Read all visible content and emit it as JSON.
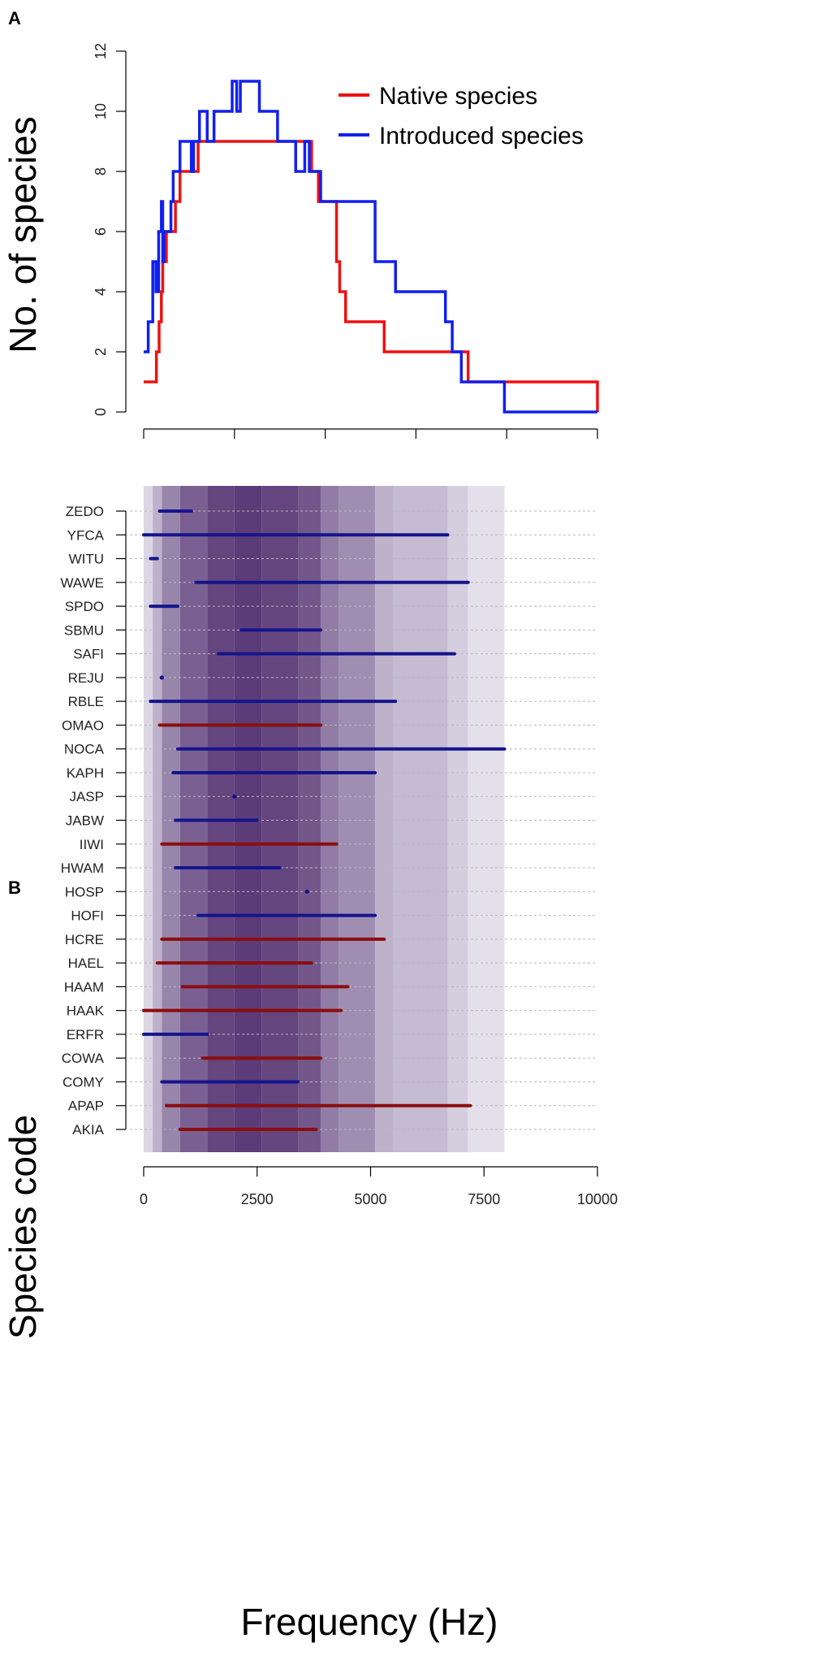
{
  "panel_a": {
    "panel_label": "A",
    "chart_data": {
      "type": "line",
      "title": "",
      "xlabel": "",
      "ylabel": "No. of species",
      "xlim": [
        0,
        10000
      ],
      "ylim": [
        0,
        12
      ],
      "x_ticks": [
        0,
        2000,
        4000,
        6000,
        8000,
        10000
      ],
      "y_ticks": [
        0,
        2,
        4,
        6,
        8,
        10,
        12
      ],
      "y_tick_labels": [
        "0",
        "2",
        "4",
        "6",
        "8",
        "10",
        "12"
      ],
      "legend_position": "top-right",
      "series": [
        {
          "name": "Native species",
          "color": "#ee1111",
          "step": true,
          "x": [
            0,
            280,
            340,
            390,
            420,
            500,
            700,
            800,
            850,
            1200,
            1300,
            1400,
            3700,
            3850,
            4250,
            4320,
            4450,
            5300,
            7150,
            10000
          ],
          "y": [
            1,
            2,
            3,
            4,
            5,
            6,
            7,
            8,
            8,
            9,
            9,
            9,
            8,
            7,
            5,
            4,
            3,
            2,
            1,
            0
          ]
        },
        {
          "name": "Introduced species",
          "color": "#1020ee",
          "step": true,
          "x": [
            0,
            100,
            200,
            270,
            330,
            390,
            420,
            450,
            500,
            600,
            650,
            700,
            800,
            1050,
            1100,
            1180,
            1230,
            1400,
            1550,
            1650,
            1950,
            2050,
            2130,
            2550,
            2950,
            3350,
            3550,
            3650,
            3900,
            5100,
            5550,
            6650,
            6800,
            7000,
            7150,
            7950,
            10000
          ],
          "y": [
            2,
            3,
            5,
            4,
            6,
            7,
            5,
            6,
            6,
            7,
            8,
            8,
            9,
            8,
            9,
            9,
            10,
            9,
            10,
            10,
            11,
            10,
            11,
            10,
            9,
            8,
            9,
            8,
            7,
            5,
            4,
            3,
            2,
            1,
            1,
            0,
            0
          ]
        }
      ]
    }
  },
  "panel_b": {
    "panel_label": "B",
    "chart_data": {
      "type": "bar",
      "orientation": "horizontal-range",
      "title": "",
      "xlabel": "Frequency (Hz)",
      "ylabel": "Species code",
      "xlim": [
        0,
        10000
      ],
      "x_ticks": [
        0,
        2500,
        5000,
        7500,
        10000
      ],
      "x_tick_labels": [
        "0",
        "2500",
        "5000",
        "7500",
        "10000"
      ],
      "background_density_note": "shaded bands indicate count of species overlapping each frequency",
      "background_bands": [
        {
          "from": 0,
          "to": 200,
          "count": 3
        },
        {
          "from": 200,
          "to": 400,
          "count": 7
        },
        {
          "from": 400,
          "to": 800,
          "count": 12
        },
        {
          "from": 800,
          "to": 1400,
          "count": 16
        },
        {
          "from": 1400,
          "to": 2000,
          "count": 19
        },
        {
          "from": 2000,
          "to": 2600,
          "count": 20
        },
        {
          "from": 2600,
          "to": 3400,
          "count": 19
        },
        {
          "from": 3400,
          "to": 3900,
          "count": 17
        },
        {
          "from": 3900,
          "to": 4300,
          "count": 13
        },
        {
          "from": 4300,
          "to": 5100,
          "count": 11
        },
        {
          "from": 5100,
          "to": 5500,
          "count": 7
        },
        {
          "from": 5500,
          "to": 6700,
          "count": 6
        },
        {
          "from": 6700,
          "to": 7150,
          "count": 4
        },
        {
          "from": 7150,
          "to": 7950,
          "count": 2
        }
      ],
      "native_color": "#8b0d0d",
      "introduced_color": "#14148c",
      "categories": [
        "ZEDO",
        "YFCA",
        "WITU",
        "WAWE",
        "SPDO",
        "SBMU",
        "SAFI",
        "REJU",
        "RBLE",
        "OMAO",
        "NOCA",
        "KAPH",
        "JASP",
        "JABW",
        "IIWI",
        "HWAM",
        "HOSP",
        "HOFI",
        "HCRE",
        "HAEL",
        "HAAM",
        "HAAK",
        "ERFR",
        "COWA",
        "COMY",
        "APAP",
        "AKIA"
      ],
      "ranges": [
        {
          "code": "ZEDO",
          "low": 350,
          "high": 1050,
          "status": "introduced"
        },
        {
          "code": "YFCA",
          "low": 0,
          "high": 6700,
          "status": "introduced"
        },
        {
          "code": "WITU",
          "low": 150,
          "high": 300,
          "status": "introduced"
        },
        {
          "code": "WAWE",
          "low": 1150,
          "high": 7150,
          "status": "introduced"
        },
        {
          "code": "SPDO",
          "low": 150,
          "high": 750,
          "status": "introduced"
        },
        {
          "code": "SBMU",
          "low": 2150,
          "high": 3900,
          "status": "introduced"
        },
        {
          "code": "SAFI",
          "low": 1650,
          "high": 6850,
          "status": "introduced"
        },
        {
          "code": "REJU",
          "low": 400,
          "high": 450,
          "status": "introduced"
        },
        {
          "code": "RBLE",
          "low": 150,
          "high": 5550,
          "status": "introduced"
        },
        {
          "code": "OMAO",
          "low": 350,
          "high": 3900,
          "status": "native"
        },
        {
          "code": "NOCA",
          "low": 750,
          "high": 7950,
          "status": "introduced"
        },
        {
          "code": "KAPH",
          "low": 650,
          "high": 5100,
          "status": "introduced"
        },
        {
          "code": "JASP",
          "low": 2000,
          "high": 2050,
          "status": "introduced"
        },
        {
          "code": "JABW",
          "low": 700,
          "high": 2500,
          "status": "introduced"
        },
        {
          "code": "IIWI",
          "low": 400,
          "high": 4250,
          "status": "native"
        },
        {
          "code": "HWAM",
          "low": 700,
          "high": 3000,
          "status": "introduced"
        },
        {
          "code": "HOSP",
          "low": 3600,
          "high": 3600,
          "status": "introduced"
        },
        {
          "code": "HOFI",
          "low": 1200,
          "high": 5100,
          "status": "introduced"
        },
        {
          "code": "HCRE",
          "low": 400,
          "high": 5300,
          "status": "native"
        },
        {
          "code": "HAEL",
          "low": 300,
          "high": 3700,
          "status": "native"
        },
        {
          "code": "HAAM",
          "low": 850,
          "high": 4500,
          "status": "native"
        },
        {
          "code": "HAAK",
          "low": 0,
          "high": 4350,
          "status": "native"
        },
        {
          "code": "ERFR",
          "low": 0,
          "high": 1400,
          "status": "introduced"
        },
        {
          "code": "COWA",
          "low": 1300,
          "high": 3900,
          "status": "native"
        },
        {
          "code": "COMY",
          "low": 400,
          "high": 3400,
          "status": "introduced"
        },
        {
          "code": "APAP",
          "low": 500,
          "high": 7200,
          "status": "native"
        },
        {
          "code": "AKIA",
          "low": 800,
          "high": 3800,
          "status": "native"
        }
      ]
    }
  }
}
